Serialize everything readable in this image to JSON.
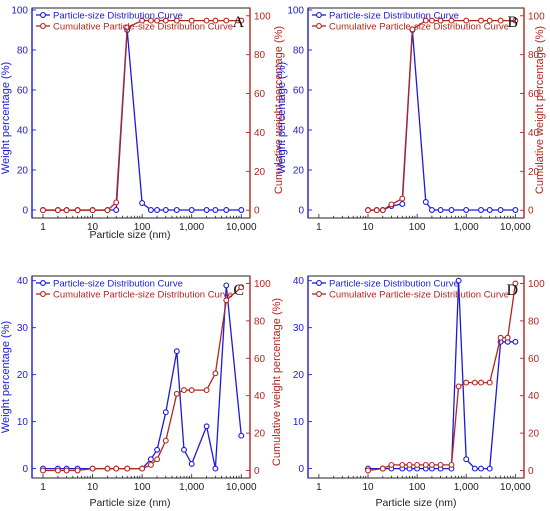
{
  "colors": {
    "blue": "#1a1adf",
    "red": "#b3261e",
    "axis": "#222222"
  },
  "chart_data": [
    {
      "type": "line",
      "panel_letter": "A",
      "xlabel": "Particle size (nm)",
      "ylabel": "Weight percentage (%)",
      "y2label": "Cumulative weight percentage (%)",
      "xscale": "log",
      "xlim": [
        0.6,
        15000
      ],
      "ylim": [
        -4,
        101
      ],
      "y2lim": [
        -4,
        104
      ],
      "xticks": [
        1,
        10,
        100,
        1000,
        10000
      ],
      "xtick_labels": [
        "1",
        "10",
        "100",
        "1,000",
        "10,000"
      ],
      "yticks": [
        0,
        20,
        40,
        60,
        80,
        100
      ],
      "y2ticks": [
        0,
        20,
        40,
        60,
        80,
        100
      ],
      "legend_position": "top-left",
      "series": [
        {
          "name": "Particle-size Distribution Curve",
          "axis": "left",
          "x": [
            1,
            2,
            3,
            5,
            10,
            20,
            30,
            50,
            100,
            150,
            200,
            300,
            500,
            1000,
            2000,
            3000,
            5000,
            10000
          ],
          "y": [
            0,
            0,
            0,
            0,
            0,
            0,
            0,
            90,
            3.5,
            0,
            0,
            0,
            0,
            0,
            0,
            0,
            0,
            0
          ]
        },
        {
          "name": "Cumulative Particle-size Distribution Curve",
          "axis": "right",
          "x": [
            1,
            2,
            3,
            5,
            10,
            20,
            30,
            50,
            100,
            150,
            200,
            300,
            500,
            1000,
            2000,
            3000,
            5000,
            10000
          ],
          "y": [
            0,
            0,
            0,
            0,
            0,
            0,
            4,
            94,
            97.5,
            97.5,
            97.5,
            97.5,
            97.5,
            97.5,
            97.5,
            97.5,
            97.5,
            97.5
          ]
        }
      ]
    },
    {
      "type": "line",
      "panel_letter": "B",
      "xlabel": "",
      "ylabel": "Weight percentage (%)",
      "y2label": "Cumulative weight percentage (%)",
      "xscale": "log",
      "xlim": [
        0.6,
        15000
      ],
      "ylim": [
        -4,
        101
      ],
      "y2lim": [
        -4,
        104
      ],
      "xticks": [
        1,
        10,
        100,
        1000,
        10000
      ],
      "xtick_labels": [
        "1",
        "10",
        "100",
        "1,000",
        "10,000"
      ],
      "yticks": [
        0,
        20,
        40,
        60,
        80,
        100
      ],
      "y2ticks": [
        0,
        20,
        40,
        60,
        80,
        100
      ],
      "legend_position": "top-left",
      "series": [
        {
          "name": "Particle-size Distribution Curve",
          "axis": "left",
          "x": [
            10,
            15,
            20,
            30,
            50,
            80,
            150,
            200,
            300,
            500,
            1000,
            2000,
            3000,
            5000,
            10000
          ],
          "y": [
            0,
            0,
            0,
            2,
            3,
            90,
            4,
            0,
            0,
            0,
            0,
            0,
            0,
            0,
            0
          ]
        },
        {
          "name": "Cumulative Particle-size Distribution Curve",
          "axis": "right",
          "x": [
            10,
            15,
            20,
            30,
            50,
            80,
            150,
            200,
            300,
            500,
            1000,
            2000,
            3000,
            5000,
            10000
          ],
          "y": [
            0,
            0,
            0,
            3,
            6,
            93,
            97.5,
            97.5,
            97.5,
            97.5,
            97.5,
            97.5,
            97.5,
            97.5,
            97.5
          ]
        }
      ]
    },
    {
      "type": "line",
      "panel_letter": "C",
      "xlabel": "Particle size (nm)",
      "ylabel": "Weight percentage (%)",
      "y2label": "Cumulative weight percentage (%)",
      "xscale": "log",
      "xlim": [
        0.6,
        15000
      ],
      "ylim": [
        -2,
        41
      ],
      "y2lim": [
        -4,
        104
      ],
      "xticks": [
        1,
        10,
        100,
        1000,
        10000
      ],
      "xtick_labels": [
        "1",
        "10",
        "100",
        "1,000",
        "10,000"
      ],
      "yticks": [
        0,
        10,
        20,
        30,
        40
      ],
      "y2ticks": [
        0,
        20,
        40,
        60,
        80,
        100
      ],
      "legend_position": "top-left",
      "series": [
        {
          "name": "Particle-size Distribution Curve",
          "axis": "left",
          "x": [
            1,
            2,
            3,
            5,
            10,
            20,
            30,
            50,
            100,
            150,
            200,
            300,
            500,
            700,
            1000,
            2000,
            3000,
            5000,
            10000
          ],
          "y": [
            0,
            0,
            0,
            0,
            0,
            0,
            0,
            0,
            0,
            2,
            4,
            12,
            25,
            4,
            1,
            9,
            0,
            39,
            7
          ]
        },
        {
          "name": "Cumulative Particle-size Distribution Curve",
          "axis": "right",
          "x": [
            1,
            2,
            3,
            5,
            10,
            20,
            30,
            50,
            100,
            150,
            200,
            300,
            500,
            700,
            1000,
            2000,
            3000,
            5000,
            10000
          ],
          "y": [
            0,
            0,
            0,
            0,
            1,
            1,
            1,
            1,
            1,
            3,
            6,
            16,
            41,
            43,
            43,
            43,
            52,
            91,
            98
          ]
        }
      ]
    },
    {
      "type": "line",
      "panel_letter": "D",
      "xlabel": "Particle size (nm)",
      "ylabel": "",
      "y2label": "",
      "xscale": "log",
      "xlim": [
        0.6,
        15000
      ],
      "ylim": [
        -2,
        41
      ],
      "y2lim": [
        -4,
        104
      ],
      "xticks": [
        1,
        10,
        100,
        1000,
        10000
      ],
      "xtick_labels": [
        "1",
        "10",
        "100",
        "1,000",
        "10,000"
      ],
      "yticks": [
        0,
        10,
        20,
        30,
        40
      ],
      "y2ticks": [
        0,
        20,
        40,
        60,
        80,
        100
      ],
      "legend_position": "top-left",
      "series": [
        {
          "name": "Particle-size Distribution Curve",
          "axis": "left",
          "x": [
            10,
            20,
            30,
            50,
            70,
            100,
            150,
            200,
            300,
            500,
            700,
            1000,
            1500,
            2000,
            3000,
            5000,
            7000,
            10000
          ],
          "y": [
            0,
            0,
            0,
            0,
            0,
            0,
            0,
            0,
            0,
            0,
            40,
            2,
            0,
            0,
            0,
            27,
            27,
            27
          ]
        },
        {
          "name": "Cumulative Particle-size Distribution Curve",
          "axis": "right",
          "x": [
            10,
            20,
            30,
            50,
            70,
            100,
            150,
            200,
            300,
            500,
            700,
            1000,
            1500,
            2000,
            3000,
            5000,
            7000,
            10000
          ],
          "y": [
            0,
            1,
            3,
            3,
            3,
            3,
            3,
            3,
            3,
            3,
            45,
            47,
            47,
            47,
            47,
            71,
            71,
            100
          ]
        }
      ]
    }
  ]
}
